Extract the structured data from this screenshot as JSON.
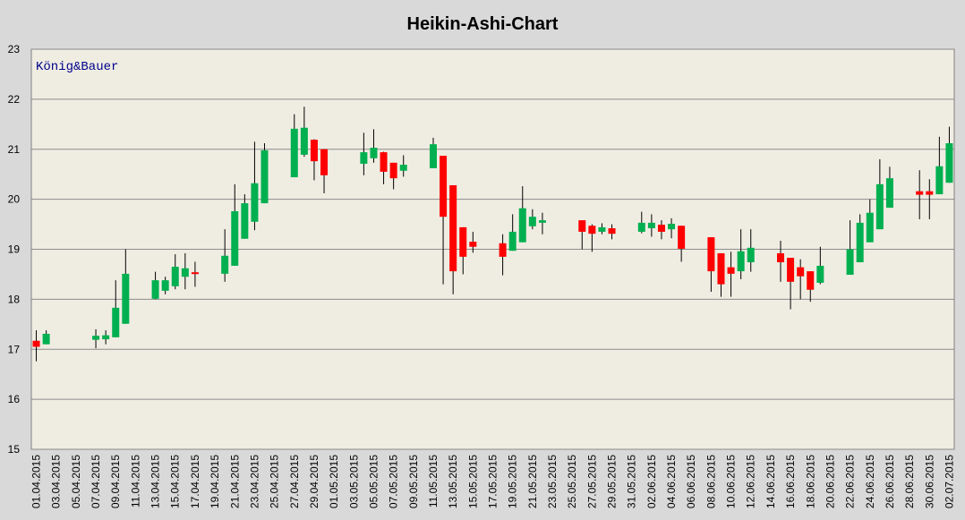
{
  "chart_data": {
    "type": "candlestick",
    "title": "Heikin-Ashi-Chart",
    "annotation": "König&Bauer",
    "categories": [
      "01.04.2015",
      null,
      "03.04.2015",
      null,
      "05.04.2015",
      null,
      "07.04.2015",
      null,
      "09.04.2015",
      null,
      "11.04.2015",
      null,
      "13.04.2015",
      null,
      "15.04.2015",
      null,
      "17.04.2015",
      null,
      "19.04.2015",
      null,
      "21.04.2015",
      null,
      "23.04.2015",
      null,
      "25.04.2015",
      null,
      "27.04.2015",
      null,
      "29.04.2015",
      null,
      "01.05.2015",
      null,
      "03.05.2015",
      null,
      "05.05.2015",
      null,
      "07.05.2015",
      null,
      "09.05.2015",
      null,
      "11.05.2015",
      null,
      "13.05.2015",
      null,
      "15.05.2015",
      null,
      "17.05.2015",
      null,
      "19.05.2015",
      null,
      "21.05.2015",
      null,
      "23.05.2015",
      null,
      "25.05.2015",
      null,
      "27.05.2015",
      null,
      "29.05.2015",
      null,
      "31.05.2015",
      null,
      "02.06.2015",
      null,
      "04.06.2015",
      null,
      "06.06.2015",
      null,
      "08.06.2015",
      null,
      "10.06.2015",
      null,
      "12.06.2015",
      null,
      "14.06.2015",
      null,
      "16.06.2015",
      null,
      "18.06.2015",
      null,
      "20.06.2015",
      null,
      "22.06.2015",
      null,
      "24.06.2015",
      null,
      "26.06.2015",
      null,
      "28.06.2015",
      null,
      "30.06.2015",
      null,
      "02.07.2015"
    ],
    "open": [
      17.17,
      17.1,
      null,
      null,
      null,
      null,
      17.19,
      17.2,
      17.24,
      17.51,
      null,
      null,
      18.01,
      18.17,
      18.26,
      18.45,
      18.54,
      null,
      null,
      18.51,
      18.67,
      19.21,
      19.55,
      19.92,
      null,
      null,
      20.44,
      20.89,
      21.19,
      21.0,
      null,
      null,
      null,
      20.71,
      20.82,
      20.94,
      20.73,
      20.57,
      null,
      null,
      20.62,
      20.87,
      20.28,
      19.44,
      19.15,
      null,
      null,
      19.12,
      18.97,
      19.14,
      19.46,
      19.53,
      null,
      null,
      null,
      19.58,
      19.47,
      19.35,
      19.42,
      null,
      null,
      19.35,
      19.42,
      19.49,
      19.4,
      19.47,
      null,
      null,
      19.24,
      18.92,
      18.64,
      18.56,
      18.74,
      null,
      null,
      18.92,
      18.83,
      18.64,
      18.56,
      18.33,
      null,
      null,
      18.49,
      18.74,
      19.14,
      19.4,
      19.83,
      null,
      null,
      20.16,
      20.16,
      20.1,
      20.33
    ],
    "high": [
      17.38,
      17.38,
      null,
      null,
      null,
      null,
      17.4,
      17.38,
      18.38,
      19.0,
      null,
      null,
      18.55,
      18.45,
      18.9,
      18.92,
      18.75,
      null,
      null,
      19.4,
      20.3,
      20.1,
      21.15,
      21.12,
      null,
      null,
      21.7,
      21.85,
      21.2,
      21.0,
      null,
      null,
      null,
      21.33,
      21.4,
      20.95,
      20.73,
      20.88,
      null,
      null,
      21.23,
      20.87,
      20.28,
      19.44,
      19.35,
      null,
      null,
      19.3,
      19.7,
      20.26,
      19.8,
      19.73,
      null,
      null,
      null,
      19.58,
      19.5,
      19.52,
      19.5,
      null,
      null,
      19.75,
      19.7,
      19.58,
      19.62,
      19.47,
      null,
      null,
      19.24,
      18.92,
      18.95,
      19.4,
      19.4,
      null,
      null,
      19.17,
      18.83,
      18.8,
      18.56,
      19.05,
      null,
      null,
      19.58,
      19.7,
      20.0,
      20.8,
      20.65,
      null,
      null,
      20.58,
      20.4,
      21.25,
      21.45
    ],
    "low": [
      16.76,
      17.1,
      null,
      null,
      null,
      null,
      17.02,
      17.1,
      17.24,
      17.51,
      null,
      null,
      18.0,
      18.1,
      18.2,
      18.2,
      18.25,
      null,
      null,
      18.35,
      18.67,
      19.21,
      19.38,
      19.92,
      null,
      null,
      20.44,
      20.85,
      20.38,
      20.12,
      null,
      null,
      null,
      20.48,
      20.73,
      20.3,
      20.2,
      20.45,
      null,
      null,
      20.62,
      18.3,
      18.1,
      18.5,
      18.93,
      null,
      null,
      18.48,
      18.97,
      19.14,
      19.4,
      19.3,
      null,
      null,
      null,
      19.0,
      18.95,
      19.3,
      19.2,
      null,
      null,
      19.32,
      19.25,
      19.2,
      19.22,
      18.75,
      null,
      null,
      18.15,
      18.05,
      18.05,
      18.4,
      18.55,
      null,
      null,
      18.35,
      17.8,
      18.0,
      17.95,
      18.3,
      null,
      null,
      18.49,
      18.74,
      19.14,
      19.4,
      19.83,
      null,
      null,
      19.6,
      19.6,
      20.1,
      20.33
    ],
    "close": [
      17.05,
      17.31,
      null,
      null,
      null,
      null,
      17.27,
      17.28,
      17.83,
      18.51,
      null,
      null,
      18.38,
      18.38,
      18.65,
      18.62,
      18.51,
      null,
      null,
      18.87,
      19.76,
      19.92,
      20.32,
      20.98,
      null,
      null,
      21.41,
      21.43,
      20.76,
      20.48,
      null,
      null,
      null,
      20.94,
      21.03,
      20.55,
      20.42,
      20.69,
      null,
      null,
      21.1,
      19.65,
      18.56,
      18.85,
      19.05,
      null,
      null,
      18.85,
      19.35,
      19.82,
      19.65,
      19.58,
      null,
      null,
      null,
      19.35,
      19.31,
      19.44,
      19.31,
      null,
      null,
      19.53,
      19.53,
      19.35,
      19.51,
      19.01,
      null,
      null,
      18.56,
      18.3,
      18.51,
      18.96,
      19.03,
      null,
      null,
      18.74,
      18.35,
      18.46,
      18.19,
      18.67,
      null,
      null,
      19.0,
      19.53,
      19.73,
      20.3,
      20.42,
      null,
      null,
      20.09,
      20.09,
      20.66,
      21.12
    ],
    "up_color": "#00b050",
    "down_color": "#ff0000",
    "ylim": [
      15,
      23
    ],
    "yticks": [
      15,
      16,
      17,
      18,
      19,
      20,
      21,
      22,
      23
    ],
    "grid": true
  }
}
